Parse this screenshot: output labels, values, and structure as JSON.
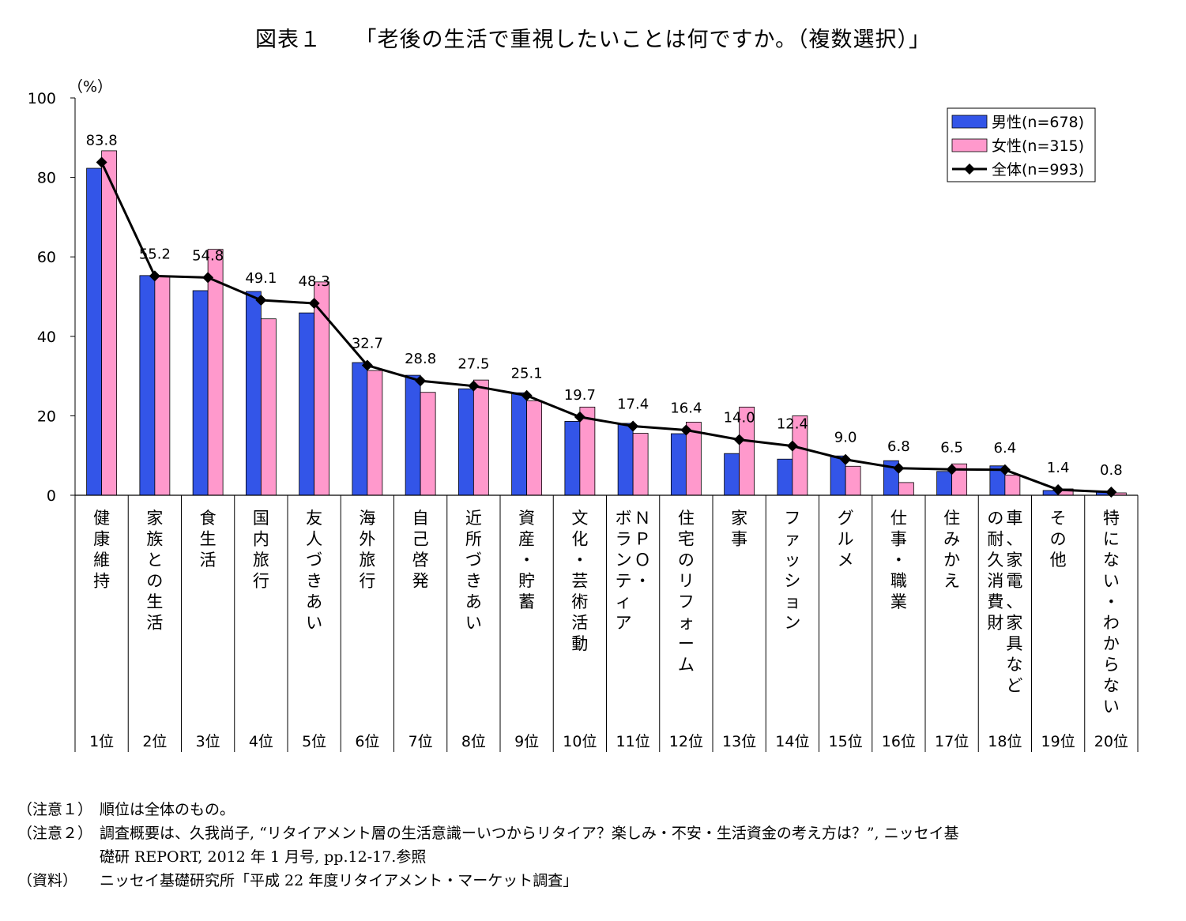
{
  "title": "図表１　　「老後の生活で重視したいことは何ですか。（複数選択）」",
  "chart_data": {
    "type": "bar",
    "title": "「老後の生活で重視したいことは何ですか。（複数選択）」",
    "ylabel": "（%）",
    "ylim": [
      0,
      100
    ],
    "yticks": [
      0,
      20,
      40,
      60,
      80,
      100
    ],
    "legend_position": "top-right",
    "categories": [
      "健康維持",
      "家族との生活",
      "食生活",
      "国内旅行",
      "友人づきあい",
      "海外旅行",
      "自己啓発",
      "近所づきあい",
      "資産・貯蓄",
      "文化・芸術活動",
      "ＮＰＯ・ボランティア",
      "住宅のリフォーム",
      "家事",
      "ファッション",
      "グルメ",
      "仕事・職業",
      "住みかえ",
      "車、家電、家具などの耐久消費財",
      "その他",
      "特にない・わからない"
    ],
    "category_columns": [
      [
        "健康維持"
      ],
      [
        "家族との生活"
      ],
      [
        "食生活"
      ],
      [
        "国内旅行"
      ],
      [
        "友人づきあい"
      ],
      [
        "海外旅行"
      ],
      [
        "自己啓発"
      ],
      [
        "近所づきあい"
      ],
      [
        "資産・貯蓄"
      ],
      [
        "文化・芸術活動"
      ],
      [
        "ボランティア",
        "ＮＰＯ・"
      ],
      [
        "住宅のリフォーム"
      ],
      [
        "家事"
      ],
      [
        "ファッション"
      ],
      [
        "グルメ"
      ],
      [
        "仕事・職業"
      ],
      [
        "住みかえ"
      ],
      [
        "の耐久消費財",
        "車、家電、家具など"
      ],
      [
        "その他"
      ],
      [
        "特にない・わからない"
      ]
    ],
    "ranks": [
      "1位",
      "2位",
      "3位",
      "4位",
      "5位",
      "6位",
      "7位",
      "8位",
      "9位",
      "10位",
      "11位",
      "12位",
      "13位",
      "14位",
      "15位",
      "16位",
      "17位",
      "18位",
      "19位",
      "20位"
    ],
    "series": [
      {
        "name": "男性(n=678)",
        "kind": "bar",
        "color": "#3355e8",
        "values": [
          82.3,
          55.3,
          51.5,
          51.3,
          45.9,
          33.4,
          30.2,
          26.8,
          25.8,
          18.6,
          18.1,
          15.5,
          10.5,
          9.1,
          9.9,
          8.7,
          6.0,
          7.4,
          1.2,
          1.0
        ]
      },
      {
        "name": "女性(n=315)",
        "kind": "bar",
        "color": "#ff99cc",
        "values": [
          86.7,
          55.0,
          61.9,
          44.4,
          53.7,
          31.4,
          25.9,
          29.0,
          23.8,
          22.2,
          15.6,
          18.4,
          22.2,
          20.0,
          7.3,
          3.2,
          7.9,
          5.1,
          1.6,
          0.6
        ]
      },
      {
        "name": "全体(n=993)",
        "kind": "line",
        "color": "#000000",
        "values": [
          83.8,
          55.2,
          54.8,
          49.1,
          48.3,
          32.7,
          28.8,
          27.5,
          25.1,
          19.7,
          17.4,
          16.4,
          14.0,
          12.4,
          9.0,
          6.8,
          6.5,
          6.4,
          1.4,
          0.8
        ],
        "labels": [
          "83.8",
          "55.2",
          "54.8",
          "49.1",
          "48.3",
          "32.7",
          "28.8",
          "27.5",
          "25.1",
          "19.7",
          "17.4",
          "16.4",
          "14.0",
          "12.4",
          "9.0",
          "6.8",
          "6.5",
          "6.4",
          "1.4",
          "0.8"
        ]
      }
    ]
  },
  "notes": [
    {
      "label": "（注意１）",
      "lines": [
        "順位は全体のもの。"
      ]
    },
    {
      "label": "（注意２）",
      "lines": [
        "調査概要は、久我尚子, “リタイアメント層の生活意識ーいつからリタイア？楽しみ・不安・生活資金の考え方は？”, ニッセイ基",
        "礎研 REPORT, 2012 年 1 月号, pp.12-17.参照"
      ]
    },
    {
      "label": "（資料）",
      "lines": [
        "ニッセイ基礎研究所「平成 22 年度リタイアメント・マーケット調査」"
      ]
    }
  ]
}
